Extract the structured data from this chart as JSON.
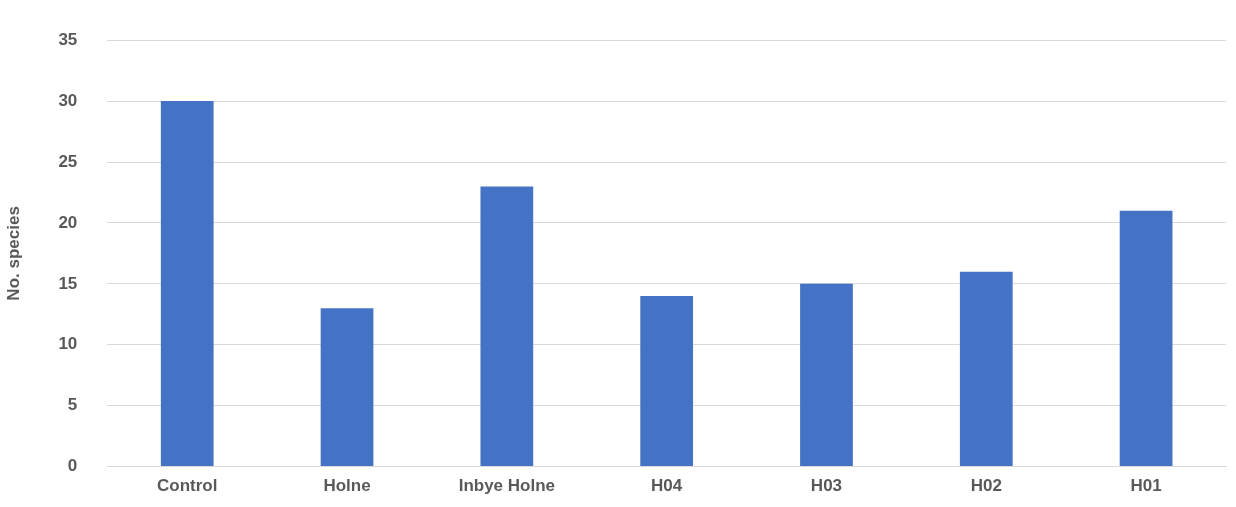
{
  "chart_data": {
    "type": "bar",
    "ylabel": "No. species",
    "categories": [
      "Control",
      "Holne",
      "Inbye Holne",
      "H04",
      "H03",
      "H02",
      "H01"
    ],
    "values": [
      30,
      13,
      23,
      14,
      15,
      16,
      21
    ],
    "color": "#4472c4",
    "ylim": [
      0,
      35
    ],
    "yticks": [
      0,
      5,
      10,
      15,
      20,
      25,
      30,
      35
    ],
    "grid": "y",
    "legend": false
  }
}
